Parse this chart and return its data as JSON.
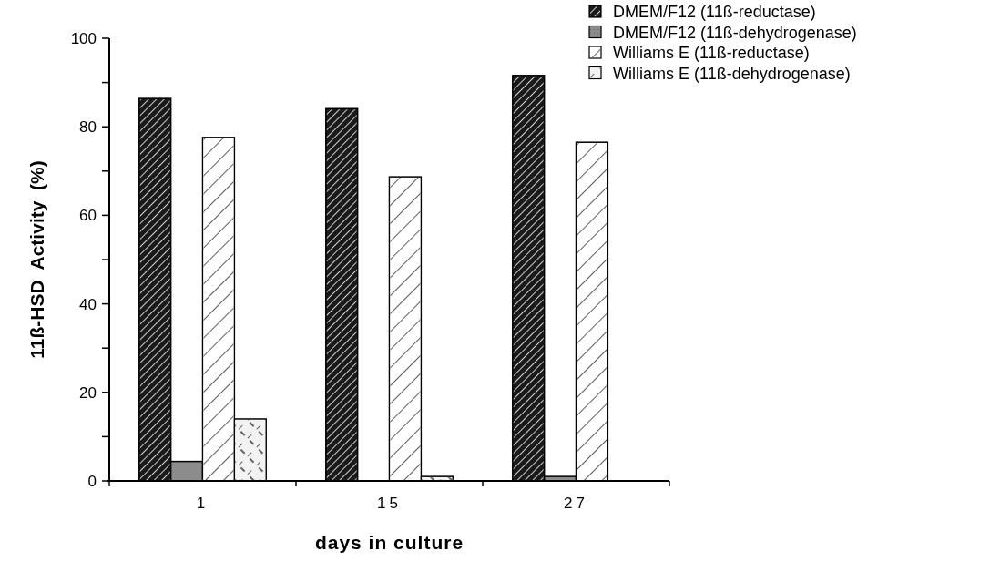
{
  "chart_data": {
    "type": "bar",
    "xlabel": "days in culture",
    "ylabel": "11ß-HSD  Activity  (%)",
    "categories": [
      "1",
      "15",
      "27"
    ],
    "series": [
      {
        "name": "DMEM/F12 (11ß-reductase)",
        "color": "#1a1a1a",
        "values": [
          86.4,
          84.1,
          91.6
        ]
      },
      {
        "name": "DMEM/F12 (11ß-dehydrogenase)",
        "color": "#8c8c8c",
        "values": [
          4.4,
          null,
          1.0
        ]
      },
      {
        "name": "Williams E (11ß-reductase)",
        "color": "#ffffff",
        "values": [
          77.6,
          68.7,
          76.5
        ]
      },
      {
        "name": "Williams E (11ß-dehydrogenase)",
        "color": "#f2f2f2",
        "values": [
          14.0,
          1.0,
          null
        ]
      }
    ],
    "ylim": [
      0,
      100
    ],
    "yticks": [
      0,
      {
        "value": 10,
        "label": null
      },
      20,
      {
        "value": 30,
        "label": null
      },
      40,
      {
        "value": 50,
        "label": null
      },
      60,
      {
        "value": 70,
        "label": null
      },
      80,
      {
        "value": 90,
        "label": null
      },
      100
    ],
    "legend": "top right"
  }
}
